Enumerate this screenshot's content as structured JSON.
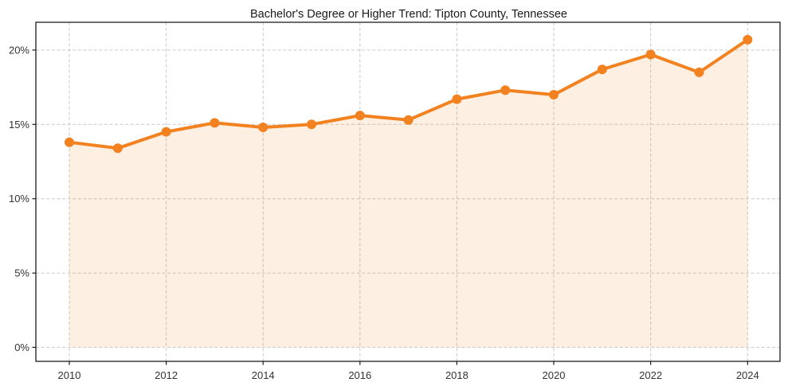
{
  "chart_data": {
    "type": "line",
    "title": "Bachelor's Degree or Higher Trend: Tipton County, Tennessee",
    "x": [
      2010,
      2011,
      2012,
      2013,
      2014,
      2015,
      2016,
      2017,
      2018,
      2019,
      2020,
      2021,
      2022,
      2023,
      2024
    ],
    "values": [
      13.8,
      13.4,
      14.5,
      15.1,
      14.8,
      15.0,
      15.6,
      15.3,
      16.7,
      17.3,
      17.0,
      18.7,
      19.7,
      18.5,
      20.7
    ],
    "xlabel": "",
    "ylabel": "",
    "xlim": [
      2009.31,
      2024.67
    ],
    "ylim": [
      -0.94,
      21.87
    ],
    "x_ticks": [
      2010,
      2012,
      2014,
      2016,
      2018,
      2020,
      2022,
      2024
    ],
    "y_ticks": [
      0,
      5,
      10,
      15,
      20
    ],
    "y_tick_labels": [
      "0%",
      "5%",
      "10%",
      "15%",
      "20%"
    ],
    "grid": true,
    "grid_style": "dashed",
    "legend": "none",
    "area_fill_to": 0,
    "colors": {
      "line": "#f28220",
      "fill_opacity": 0.13,
      "grid": "#c9c9c9",
      "axis": "#1c1c1c",
      "tick_label": "#333333",
      "title": "#1a1a1a",
      "background": "#ffffff"
    }
  }
}
